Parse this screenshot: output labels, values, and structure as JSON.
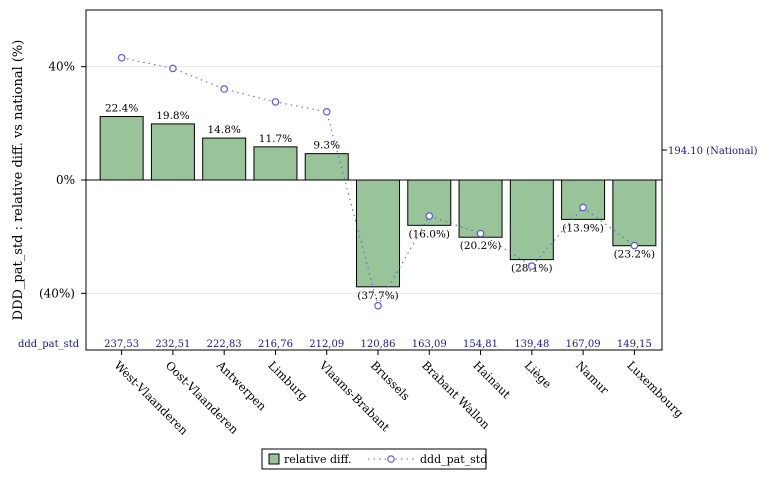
{
  "chart_data": {
    "type": "bar",
    "ylabel": "DDD_pat_std : relative diff. vs national (%)",
    "ylim": [
      -60,
      60
    ],
    "yticks": [
      {
        "value": 40,
        "label": "40%"
      },
      {
        "value": 0,
        "label": "0%"
      },
      {
        "value": -40,
        "label": "(40%)"
      }
    ],
    "grid": true,
    "categories": [
      "West-Vlaanderen",
      "Oost-Vlaanderen",
      "Antwerpen",
      "Limburg",
      "Vlaams-Brabant",
      "Brussels",
      "Brabant Wallon",
      "Hainaut",
      "Liège",
      "Namur",
      "Luxembourg"
    ],
    "series": [
      {
        "name": "relative diff.",
        "kind": "bar",
        "color": "#99c49a",
        "values": [
          22.4,
          19.8,
          14.8,
          11.7,
          9.3,
          -37.7,
          -16.0,
          -20.2,
          -28.1,
          -13.9,
          -23.2
        ],
        "labels": [
          "22.4%",
          "19.8%",
          "14.8%",
          "11.7%",
          "9.3%",
          "(37.7%)",
          "(16.0%)",
          "(20.2%)",
          "(28.1%)",
          "(13.9%)",
          "(23.2%)"
        ]
      },
      {
        "name": "ddd_pat_std",
        "kind": "line",
        "color": "#5b5bd6",
        "values": [
          237.53,
          232.51,
          222.83,
          216.76,
          212.09,
          120.86,
          163.09,
          154.81,
          139.48,
          167.09,
          149.15
        ],
        "labels": [
          "237,53",
          "232,51",
          "222,83",
          "216,76",
          "212,09",
          "120,86",
          "163,09",
          "154,81",
          "139,48",
          "167,09",
          "149,15"
        ]
      }
    ],
    "secondary_axis": {
      "range": [
        100,
        260
      ],
      "reference_value": 194.1,
      "reference_label": "194.10 (National)"
    },
    "value_row_label": "ddd_pat_std",
    "legend": {
      "placement": "bottom",
      "entries": [
        "relative diff.",
        "ddd_pat_std"
      ]
    }
  }
}
